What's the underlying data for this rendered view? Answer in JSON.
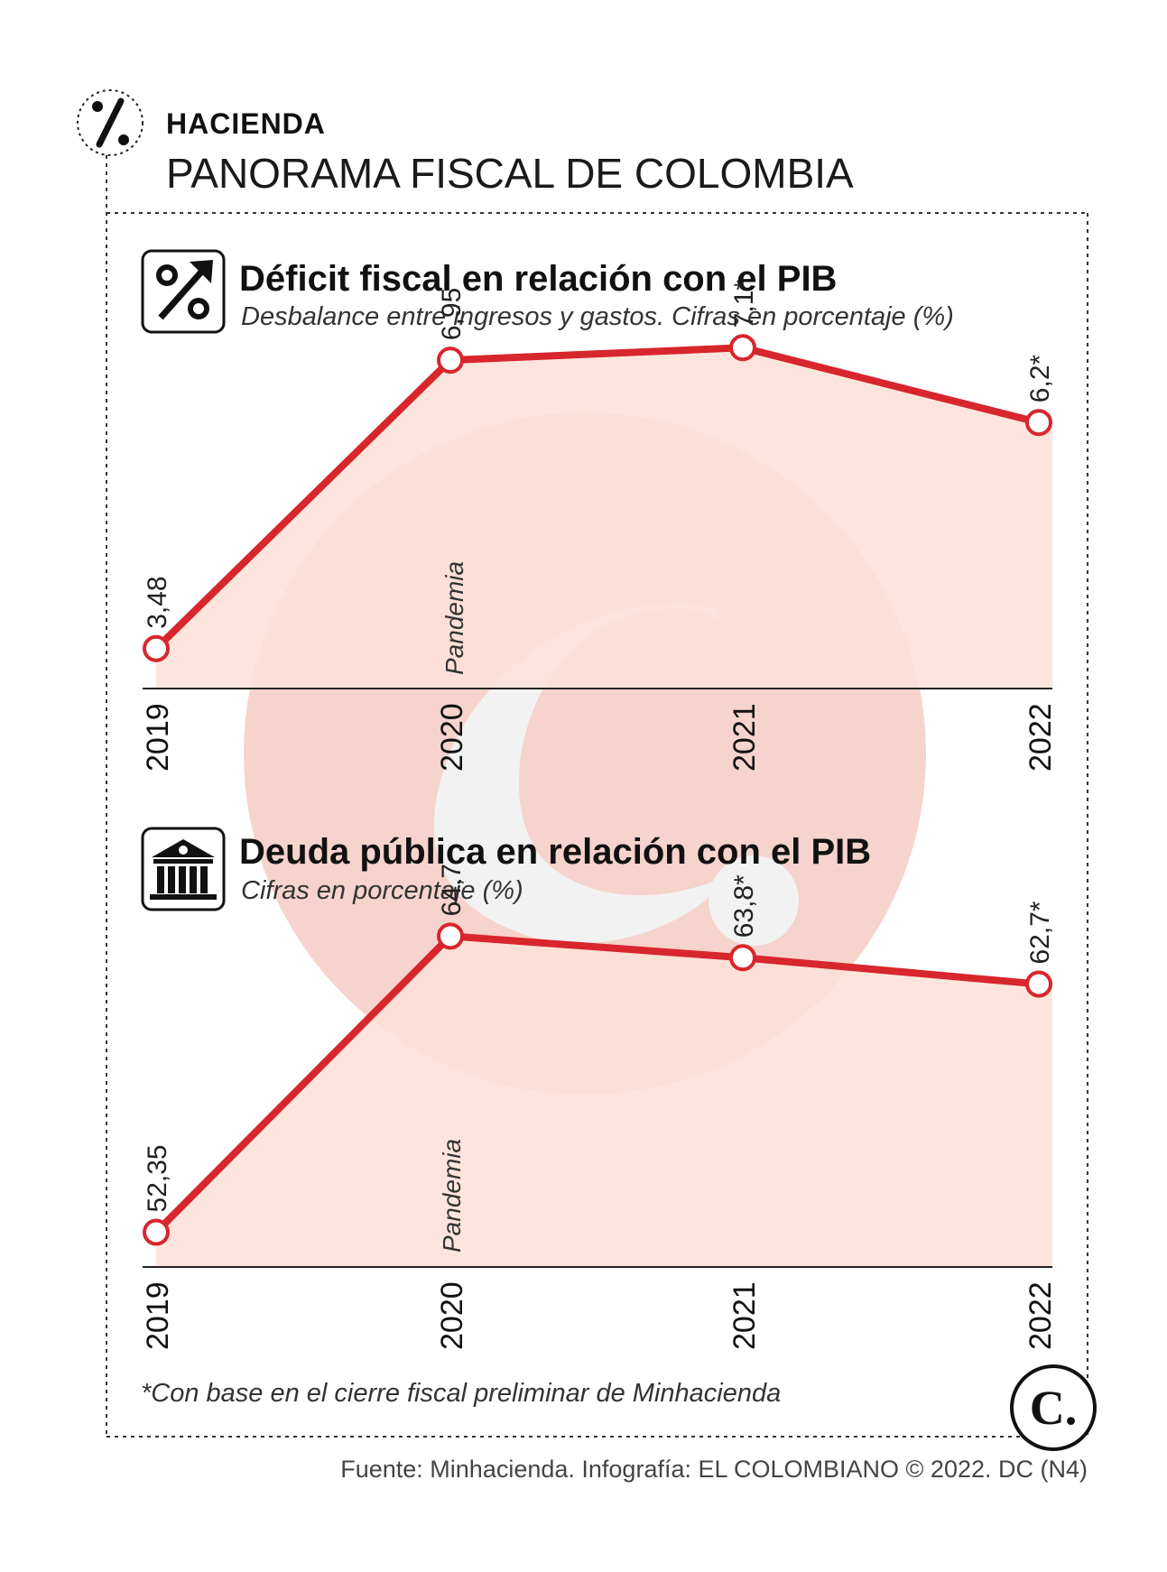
{
  "header": {
    "kicker": "HACIENDA",
    "title": "PANORAMA FISCAL DE COLOMBIA"
  },
  "colors": {
    "line": "#d7262c",
    "fill": "#fde1d8",
    "watermark": "#f2f2f2",
    "watermark_disc": "#f6d3cc"
  },
  "chart_data": [
    {
      "type": "area",
      "title": "Déficit fiscal en relación con el PIB",
      "subtitle": "Desbalance entre ingresos y gastos. Cifras en porcentaje (%)",
      "icon": "percent-arrow-icon",
      "categories": [
        "2019",
        "2020",
        "2021",
        "2022"
      ],
      "values": [
        3.48,
        6.95,
        7.1,
        6.2
      ],
      "labels": [
        "3,48",
        "6,95",
        "7,1*",
        "6,2*"
      ],
      "annotation": "Pandemia",
      "ylim": [
        3.0,
        7.7
      ],
      "grid": false
    },
    {
      "type": "area",
      "title": "Deuda pública en relación con el PIB",
      "subtitle": "Cifras en porcentaje (%)",
      "icon": "bank-icon",
      "categories": [
        "2019",
        "2020",
        "2021",
        "2022"
      ],
      "values": [
        52.35,
        64.7,
        63.8,
        62.7
      ],
      "labels": [
        "52,35",
        "64,7",
        "63,8*",
        "62,7*"
      ],
      "annotation": "Pandemia",
      "ylim": [
        50.9,
        67.8
      ],
      "grid": false
    }
  ],
  "footnote": "*Con base en el cierre fiscal preliminar de Minhacienda",
  "source": "Fuente: Minhacienda. Infografía: EL COLOMBIANO © 2022. DC (N4)",
  "logo_letter": "C."
}
